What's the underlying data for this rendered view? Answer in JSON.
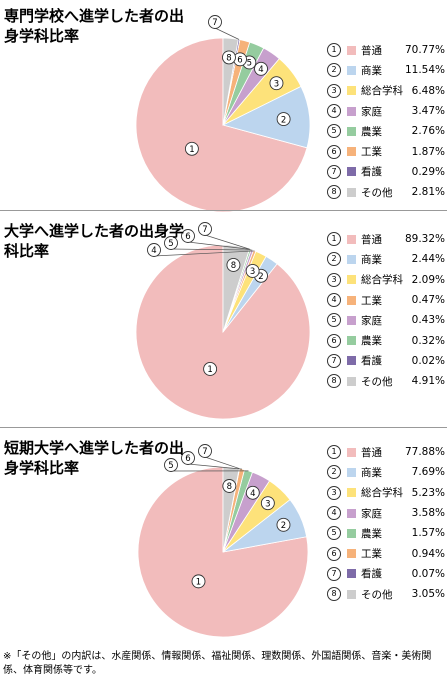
{
  "chart_data": [
    {
      "type": "pie",
      "title": "専門学校へ進学した者の出身学科比率",
      "series": [
        {
          "num": "①",
          "label": "普通",
          "value": 70.77,
          "pct": "70.77%",
          "color": "#f2bcbc"
        },
        {
          "num": "②",
          "label": "商業",
          "value": 11.54,
          "pct": "11.54%",
          "color": "#bcd5ee"
        },
        {
          "num": "③",
          "label": "総合学科",
          "value": 6.48,
          "pct": "6.48%",
          "color": "#fde27a"
        },
        {
          "num": "④",
          "label": "家庭",
          "value": 3.47,
          "pct": "3.47%",
          "color": "#c7a0cd"
        },
        {
          "num": "⑤",
          "label": "農業",
          "value": 2.76,
          "pct": "2.76%",
          "color": "#95cc9f"
        },
        {
          "num": "⑥",
          "label": "工業",
          "value": 1.87,
          "pct": "1.87%",
          "color": "#f6b27a"
        },
        {
          "num": "⑦",
          "label": "看護",
          "value": 0.29,
          "pct": "0.29%",
          "color": "#7e6ba8"
        },
        {
          "num": "⑧",
          "label": "その他",
          "value": 2.81,
          "pct": "2.81%",
          "color": "#cdcdcd"
        }
      ]
    },
    {
      "type": "pie",
      "title": "大学へ進学した者の出身学科比率",
      "series": [
        {
          "num": "①",
          "label": "普通",
          "value": 89.32,
          "pct": "89.32%",
          "color": "#f2bcbc"
        },
        {
          "num": "②",
          "label": "商業",
          "value": 2.44,
          "pct": "2.44%",
          "color": "#bcd5ee"
        },
        {
          "num": "③",
          "label": "総合学科",
          "value": 2.09,
          "pct": "2.09%",
          "color": "#fde27a"
        },
        {
          "num": "④",
          "label": "工業",
          "value": 0.47,
          "pct": "0.47%",
          "color": "#f6b27a"
        },
        {
          "num": "⑤",
          "label": "家庭",
          "value": 0.43,
          "pct": "0.43%",
          "color": "#c7a0cd"
        },
        {
          "num": "⑥",
          "label": "農業",
          "value": 0.32,
          "pct": "0.32%",
          "color": "#95cc9f"
        },
        {
          "num": "⑦",
          "label": "看護",
          "value": 0.02,
          "pct": "0.02%",
          "color": "#7e6ba8"
        },
        {
          "num": "⑧",
          "label": "その他",
          "value": 4.91,
          "pct": "4.91%",
          "color": "#cdcdcd"
        }
      ]
    },
    {
      "type": "pie",
      "title": "短期大学へ進学した者の出身学科比率",
      "series": [
        {
          "num": "①",
          "label": "普通",
          "value": 77.88,
          "pct": "77.88%",
          "color": "#f2bcbc"
        },
        {
          "num": "②",
          "label": "商業",
          "value": 7.69,
          "pct": "7.69%",
          "color": "#bcd5ee"
        },
        {
          "num": "③",
          "label": "総合学科",
          "value": 5.23,
          "pct": "5.23%",
          "color": "#fde27a"
        },
        {
          "num": "④",
          "label": "家庭",
          "value": 3.58,
          "pct": "3.58%",
          "color": "#c7a0cd"
        },
        {
          "num": "⑤",
          "label": "農業",
          "value": 1.57,
          "pct": "1.57%",
          "color": "#95cc9f"
        },
        {
          "num": "⑥",
          "label": "工業",
          "value": 0.94,
          "pct": "0.94%",
          "color": "#f6b27a"
        },
        {
          "num": "⑦",
          "label": "看護",
          "value": 0.07,
          "pct": "0.07%",
          "color": "#7e6ba8"
        },
        {
          "num": "⑧",
          "label": "その他",
          "value": 3.05,
          "pct": "3.05%",
          "color": "#cdcdcd"
        }
      ]
    }
  ],
  "footnote": "※「その他」の内訳は、水産関係、情報関係、福祉関係、理数関係、外国語関係、音楽・美術関係、体育関係等です。"
}
